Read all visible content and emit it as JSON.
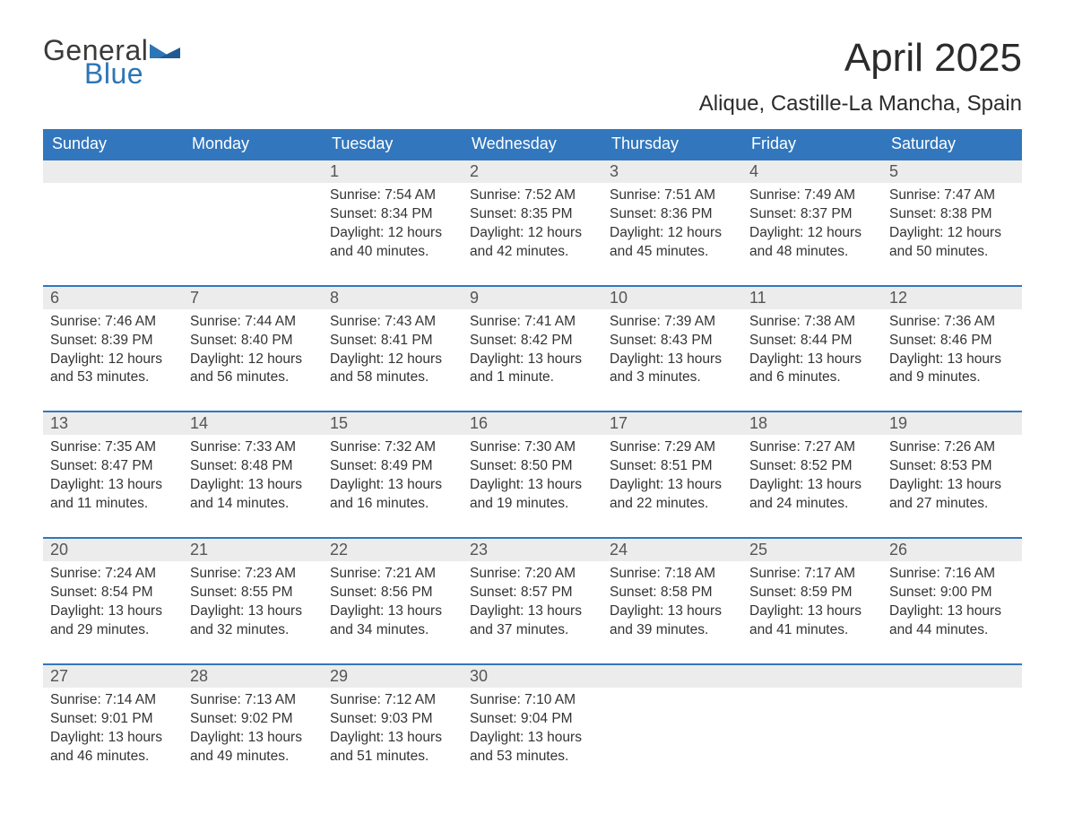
{
  "brand": {
    "word1": "General",
    "word2": "Blue",
    "color_text": "#3a3a3a",
    "color_blue": "#2e75b6"
  },
  "title": "April 2025",
  "location": "Alique, Castille-La Mancha, Spain",
  "colors": {
    "header_bg": "#3277bd",
    "header_text": "#ffffff",
    "daynum_bg": "#ececec",
    "daynum_text": "#555555",
    "body_text": "#333333",
    "rule": "#3277bd",
    "page_bg": "#ffffff"
  },
  "typography": {
    "title_fontsize": 44,
    "location_fontsize": 24,
    "header_fontsize": 18,
    "daynum_fontsize": 18,
    "detail_fontsize": 15.5
  },
  "columns": [
    "Sunday",
    "Monday",
    "Tuesday",
    "Wednesday",
    "Thursday",
    "Friday",
    "Saturday"
  ],
  "weeks": [
    [
      null,
      null,
      {
        "n": "1",
        "sr": "7:54 AM",
        "ss": "8:34 PM",
        "dl": "12 hours and 40 minutes."
      },
      {
        "n": "2",
        "sr": "7:52 AM",
        "ss": "8:35 PM",
        "dl": "12 hours and 42 minutes."
      },
      {
        "n": "3",
        "sr": "7:51 AM",
        "ss": "8:36 PM",
        "dl": "12 hours and 45 minutes."
      },
      {
        "n": "4",
        "sr": "7:49 AM",
        "ss": "8:37 PM",
        "dl": "12 hours and 48 minutes."
      },
      {
        "n": "5",
        "sr": "7:47 AM",
        "ss": "8:38 PM",
        "dl": "12 hours and 50 minutes."
      }
    ],
    [
      {
        "n": "6",
        "sr": "7:46 AM",
        "ss": "8:39 PM",
        "dl": "12 hours and 53 minutes."
      },
      {
        "n": "7",
        "sr": "7:44 AM",
        "ss": "8:40 PM",
        "dl": "12 hours and 56 minutes."
      },
      {
        "n": "8",
        "sr": "7:43 AM",
        "ss": "8:41 PM",
        "dl": "12 hours and 58 minutes."
      },
      {
        "n": "9",
        "sr": "7:41 AM",
        "ss": "8:42 PM",
        "dl": "13 hours and 1 minute."
      },
      {
        "n": "10",
        "sr": "7:39 AM",
        "ss": "8:43 PM",
        "dl": "13 hours and 3 minutes."
      },
      {
        "n": "11",
        "sr": "7:38 AM",
        "ss": "8:44 PM",
        "dl": "13 hours and 6 minutes."
      },
      {
        "n": "12",
        "sr": "7:36 AM",
        "ss": "8:46 PM",
        "dl": "13 hours and 9 minutes."
      }
    ],
    [
      {
        "n": "13",
        "sr": "7:35 AM",
        "ss": "8:47 PM",
        "dl": "13 hours and 11 minutes."
      },
      {
        "n": "14",
        "sr": "7:33 AM",
        "ss": "8:48 PM",
        "dl": "13 hours and 14 minutes."
      },
      {
        "n": "15",
        "sr": "7:32 AM",
        "ss": "8:49 PM",
        "dl": "13 hours and 16 minutes."
      },
      {
        "n": "16",
        "sr": "7:30 AM",
        "ss": "8:50 PM",
        "dl": "13 hours and 19 minutes."
      },
      {
        "n": "17",
        "sr": "7:29 AM",
        "ss": "8:51 PM",
        "dl": "13 hours and 22 minutes."
      },
      {
        "n": "18",
        "sr": "7:27 AM",
        "ss": "8:52 PM",
        "dl": "13 hours and 24 minutes."
      },
      {
        "n": "19",
        "sr": "7:26 AM",
        "ss": "8:53 PM",
        "dl": "13 hours and 27 minutes."
      }
    ],
    [
      {
        "n": "20",
        "sr": "7:24 AM",
        "ss": "8:54 PM",
        "dl": "13 hours and 29 minutes."
      },
      {
        "n": "21",
        "sr": "7:23 AM",
        "ss": "8:55 PM",
        "dl": "13 hours and 32 minutes."
      },
      {
        "n": "22",
        "sr": "7:21 AM",
        "ss": "8:56 PM",
        "dl": "13 hours and 34 minutes."
      },
      {
        "n": "23",
        "sr": "7:20 AM",
        "ss": "8:57 PM",
        "dl": "13 hours and 37 minutes."
      },
      {
        "n": "24",
        "sr": "7:18 AM",
        "ss": "8:58 PM",
        "dl": "13 hours and 39 minutes."
      },
      {
        "n": "25",
        "sr": "7:17 AM",
        "ss": "8:59 PM",
        "dl": "13 hours and 41 minutes."
      },
      {
        "n": "26",
        "sr": "7:16 AM",
        "ss": "9:00 PM",
        "dl": "13 hours and 44 minutes."
      }
    ],
    [
      {
        "n": "27",
        "sr": "7:14 AM",
        "ss": "9:01 PM",
        "dl": "13 hours and 46 minutes."
      },
      {
        "n": "28",
        "sr": "7:13 AM",
        "ss": "9:02 PM",
        "dl": "13 hours and 49 minutes."
      },
      {
        "n": "29",
        "sr": "7:12 AM",
        "ss": "9:03 PM",
        "dl": "13 hours and 51 minutes."
      },
      {
        "n": "30",
        "sr": "7:10 AM",
        "ss": "9:04 PM",
        "dl": "13 hours and 53 minutes."
      },
      null,
      null,
      null
    ]
  ],
  "labels": {
    "sunrise": "Sunrise: ",
    "sunset": "Sunset: ",
    "daylight": "Daylight: "
  }
}
